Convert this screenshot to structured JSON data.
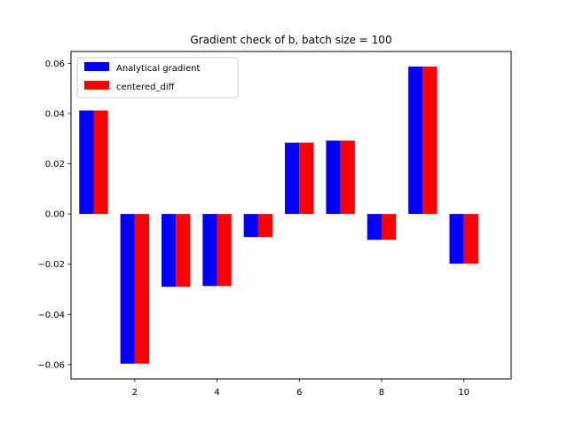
{
  "chart_data": {
    "type": "bar",
    "title": "Gradient check of b, batch size = 100",
    "xlabel": "",
    "ylabel": "",
    "x": [
      1,
      2,
      3,
      4,
      5,
      6,
      7,
      8,
      9,
      10
    ],
    "series": [
      {
        "name": "Analytical gradient",
        "color": "#0000ff",
        "values": [
          0.0412,
          -0.0596,
          -0.029,
          -0.0287,
          -0.0092,
          0.0284,
          0.0292,
          -0.0103,
          0.0587,
          -0.0198
        ]
      },
      {
        "name": "centered_diff",
        "color": "#ff0000",
        "values": [
          0.0412,
          -0.0596,
          -0.029,
          -0.0287,
          -0.0092,
          0.0284,
          0.0292,
          -0.0103,
          0.0587,
          -0.0198
        ]
      }
    ],
    "xlim": [
      0.45,
      11.15
    ],
    "ylim": [
      -0.0657,
      0.0647
    ],
    "xticks": [
      2,
      4,
      6,
      8,
      10
    ],
    "xtick_labels": [
      "2",
      "4",
      "6",
      "8",
      "10"
    ],
    "yticks": [
      -0.06,
      -0.04,
      -0.02,
      0.0,
      0.02,
      0.04,
      0.06
    ],
    "ytick_labels": [
      "−0.06",
      "−0.04",
      "−0.02",
      "0.00",
      "0.02",
      "0.04",
      "0.06"
    ],
    "grid": false,
    "legend_position": "upper-left"
  }
}
